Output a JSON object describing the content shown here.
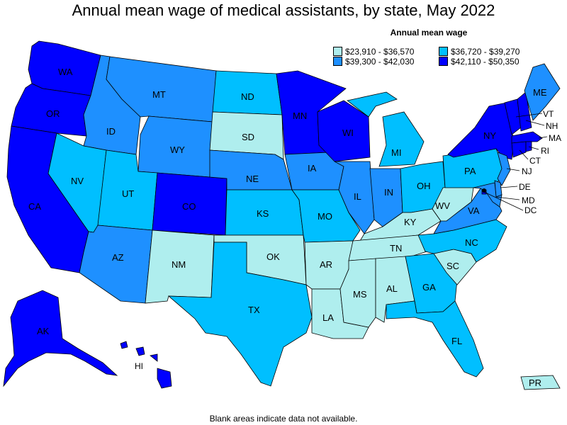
{
  "title": "Annual mean wage of medical assistants, by state, May 2022",
  "legend": {
    "title": "Annual mean wage",
    "items": [
      {
        "range": "$23,910 - $36,570",
        "color": "#afeeee"
      },
      {
        "range": "$36,720 - $39,270",
        "color": "#00bfff"
      },
      {
        "range": "$39,300 - $42,030",
        "color": "#1e90ff"
      },
      {
        "range": "$42,110 - $50,350",
        "color": "#0000ff"
      }
    ]
  },
  "footnote": "Blank areas indicate data not available.",
  "states": {
    "WA": {
      "label": "WA",
      "tier": 3
    },
    "OR": {
      "label": "OR",
      "tier": 3
    },
    "CA": {
      "label": "CA",
      "tier": 3
    },
    "ID": {
      "label": "ID",
      "tier": 2
    },
    "NV": {
      "label": "NV",
      "tier": 1
    },
    "MT": {
      "label": "MT",
      "tier": 2
    },
    "WY": {
      "label": "WY",
      "tier": 2
    },
    "UT": {
      "label": "UT",
      "tier": 1
    },
    "AZ": {
      "label": "AZ",
      "tier": 2
    },
    "CO": {
      "label": "CO",
      "tier": 3
    },
    "NM": {
      "label": "NM",
      "tier": 0
    },
    "ND": {
      "label": "ND",
      "tier": 1
    },
    "SD": {
      "label": "SD",
      "tier": 0
    },
    "NE": {
      "label": "NE",
      "tier": 2
    },
    "KS": {
      "label": "KS",
      "tier": 1
    },
    "OK": {
      "label": "OK",
      "tier": 0
    },
    "TX": {
      "label": "TX",
      "tier": 1
    },
    "MN": {
      "label": "MN",
      "tier": 3
    },
    "IA": {
      "label": "IA",
      "tier": 2
    },
    "MO": {
      "label": "MO",
      "tier": 1
    },
    "AR": {
      "label": "AR",
      "tier": 0
    },
    "LA": {
      "label": "LA",
      "tier": 0
    },
    "WI": {
      "label": "WI",
      "tier": 3
    },
    "IL": {
      "label": "IL",
      "tier": 2
    },
    "MI": {
      "label": "MI",
      "tier": 1
    },
    "IN": {
      "label": "IN",
      "tier": 2
    },
    "OH": {
      "label": "OH",
      "tier": 1
    },
    "KY": {
      "label": "KY",
      "tier": 0
    },
    "TN": {
      "label": "TN",
      "tier": 0
    },
    "MS": {
      "label": "MS",
      "tier": 0
    },
    "AL": {
      "label": "AL",
      "tier": 0
    },
    "GA": {
      "label": "GA",
      "tier": 1
    },
    "FL": {
      "label": "FL",
      "tier": 1
    },
    "SC": {
      "label": "SC",
      "tier": 0
    },
    "NC": {
      "label": "NC",
      "tier": 1
    },
    "VA": {
      "label": "VA",
      "tier": 2
    },
    "WV": {
      "label": "WV",
      "tier": 0
    },
    "PA": {
      "label": "PA",
      "tier": 1
    },
    "NY": {
      "label": "NY",
      "tier": 3
    },
    "VT": {
      "label": "VT",
      "tier": 3
    },
    "NH": {
      "label": "NH",
      "tier": 3
    },
    "ME": {
      "label": "ME",
      "tier": 2
    },
    "MA": {
      "label": "MA",
      "tier": 3
    },
    "RI": {
      "label": "RI",
      "tier": 3
    },
    "CT": {
      "label": "CT",
      "tier": 3
    },
    "NJ": {
      "label": "NJ",
      "tier": 2
    },
    "DE": {
      "label": "DE",
      "tier": 2
    },
    "MD": {
      "label": "MD",
      "tier": 2
    },
    "DC": {
      "label": "DC",
      "tier": 3
    },
    "AK": {
      "label": "AK",
      "tier": 3
    },
    "HI": {
      "label": "HI",
      "tier": 3
    },
    "PR": {
      "label": "PR",
      "tier": 0
    }
  }
}
